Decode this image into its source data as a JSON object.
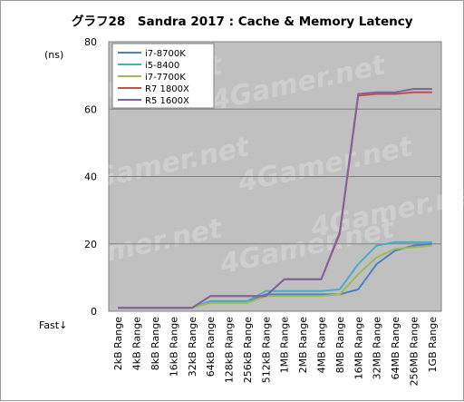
{
  "chart_data": {
    "type": "line",
    "title": "グラフ28　Sandra 2017 : Cache & Memory Latency",
    "ylabel": "(ns)",
    "xlabel": "Fast↓",
    "ylim": [
      0,
      80
    ],
    "y_ticks": [
      0,
      20,
      40,
      60,
      80
    ],
    "grid": true,
    "legend_position": "top-left",
    "watermark": "4Gamer.net",
    "categories": [
      "2kB Range",
      "4kB Range",
      "8kB Range",
      "16kB Range",
      "32kB Range",
      "64kB Range",
      "128kB Range",
      "256kB Range",
      "512kB Range",
      "1MB Range",
      "2MB Range",
      "4MB Range",
      "8MB Range",
      "16MB Range",
      "32MB Range",
      "64MB Range",
      "256MB Range",
      "1GB Range"
    ],
    "series": [
      {
        "name": "i7-8700K",
        "color": "#4f81bd",
        "values": [
          1,
          1,
          1,
          1,
          1,
          3,
          3,
          3,
          5,
          5,
          5,
          5,
          5,
          6.5,
          14,
          18,
          19.5,
          20
        ]
      },
      {
        "name": "i5-8400",
        "color": "#4bacc6",
        "values": [
          1,
          1,
          1,
          1,
          1,
          3,
          3,
          3,
          6,
          6,
          6,
          6,
          6.5,
          14,
          19.5,
          20.5,
          20.5,
          20.5
        ]
      },
      {
        "name": "i7-7700K",
        "color": "#9bbb59",
        "values": [
          1,
          1,
          1,
          1,
          1,
          2.5,
          2.5,
          2.5,
          4.5,
          4.5,
          4.5,
          4.5,
          5,
          11,
          16,
          18.5,
          19,
          19.5
        ]
      },
      {
        "name": "R7 1800X",
        "color": "#c0504d",
        "values": [
          1,
          1,
          1,
          1,
          1,
          4.5,
          4.5,
          4.5,
          4.5,
          9.5,
          9.5,
          9.5,
          23,
          64,
          64.5,
          64.5,
          65,
          65
        ]
      },
      {
        "name": "R5 1600X",
        "color": "#8064a2",
        "values": [
          1,
          1,
          1,
          1,
          1,
          4.5,
          4.5,
          4.5,
          4.5,
          9.5,
          9.5,
          9.5,
          23.5,
          64.5,
          65,
          65,
          66,
          66
        ]
      }
    ]
  }
}
